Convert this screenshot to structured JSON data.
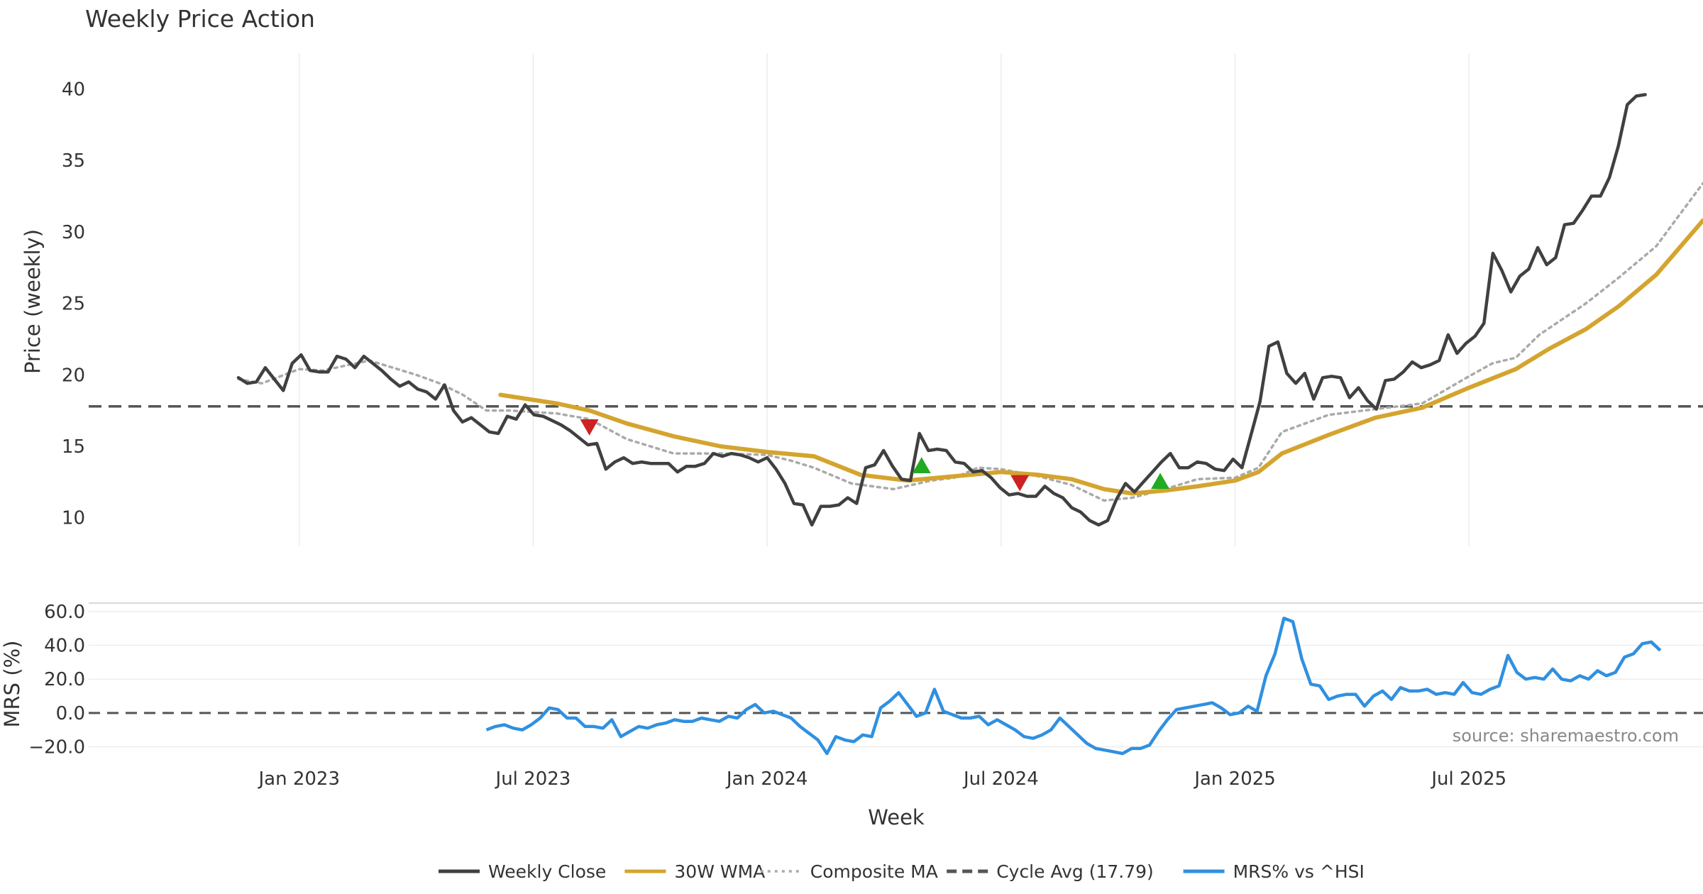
{
  "chart_data": [
    {
      "type": "line",
      "title": "Weekly Price Action",
      "ylabel": "Price (weekly)",
      "xlim": [
        2022.55,
        2026.0
      ],
      "ylim": [
        8,
        42.5
      ],
      "yticks": [
        10,
        15,
        20,
        25,
        30,
        35,
        40
      ],
      "xticks": [
        {
          "value": 2023.0,
          "label": "Jan 2023"
        },
        {
          "value": 2023.5,
          "label": "Jul 2023"
        },
        {
          "value": 2024.0,
          "label": "Jan 2024"
        },
        {
          "value": 2024.5,
          "label": "Jul 2024"
        },
        {
          "value": 2025.0,
          "label": "Jan 2025"
        },
        {
          "value": 2025.5,
          "label": "Jul 2025"
        }
      ],
      "hline": {
        "name": "Cycle Avg (17.79)",
        "value": 17.79,
        "color": "#555555"
      },
      "series": [
        {
          "name": "Weekly Close",
          "color": "#404040",
          "style": "solid",
          "x_start": 2022.87,
          "x_step": 0.01915,
          "values": [
            19.8,
            19.4,
            19.5,
            20.5,
            19.7,
            18.9,
            20.8,
            21.4,
            20.3,
            20.2,
            20.2,
            21.3,
            21.1,
            20.5,
            21.3,
            20.8,
            20.3,
            19.7,
            19.2,
            19.5,
            19.0,
            18.8,
            18.3,
            19.3,
            17.5,
            16.7,
            17.0,
            16.5,
            16.0,
            15.9,
            17.1,
            16.9,
            17.9,
            17.2,
            17.1,
            16.8,
            16.5,
            16.1,
            15.6,
            15.1,
            15.2,
            13.4,
            13.9,
            14.2,
            13.8,
            13.9,
            13.8,
            13.8,
            13.8,
            13.2,
            13.6,
            13.6,
            13.8,
            14.5,
            14.3,
            14.5,
            14.4,
            14.2,
            13.9,
            14.2,
            13.4,
            12.4,
            11.0,
            10.9,
            9.5,
            10.8,
            10.8,
            10.9,
            11.4,
            11.0,
            13.5,
            13.7,
            14.7,
            13.6,
            12.7,
            12.6,
            15.9,
            14.7,
            14.8,
            14.7,
            13.9,
            13.8,
            13.2,
            13.3,
            12.8,
            12.1,
            11.6,
            11.7,
            11.5,
            11.5,
            12.2,
            11.7,
            11.4,
            10.7,
            10.4,
            9.8,
            9.5,
            9.8,
            11.3,
            12.4,
            11.8,
            12.5,
            13.2,
            13.9,
            14.5,
            13.5,
            13.5,
            13.9,
            13.8,
            13.4,
            13.3,
            14.1,
            13.5,
            15.8,
            18.1,
            22.0,
            22.3,
            20.1,
            19.4,
            20.1,
            18.3,
            19.8,
            19.9,
            19.8,
            18.4,
            19.1,
            18.2,
            17.6,
            19.6,
            19.7,
            20.2,
            20.9,
            20.5,
            20.7,
            21.0,
            22.8,
            21.5,
            22.2,
            22.7,
            23.6,
            28.5,
            27.3,
            25.8,
            26.9,
            27.4,
            28.9,
            27.7,
            28.2,
            30.5,
            30.6,
            31.5,
            32.5,
            32.5,
            33.8,
            36.0,
            38.9,
            39.5,
            39.6
          ]
        },
        {
          "name": "30W WMA",
          "color": "#D4A42E",
          "style": "solid",
          "points": [
            [
              2023.43,
              18.6
            ],
            [
              2023.55,
              18.0
            ],
            [
              2023.62,
              17.5
            ],
            [
              2023.7,
              16.6
            ],
            [
              2023.8,
              15.7
            ],
            [
              2023.9,
              15.0
            ],
            [
              2024.0,
              14.6
            ],
            [
              2024.1,
              14.3
            ],
            [
              2024.2,
              13.0
            ],
            [
              2024.3,
              12.6
            ],
            [
              2024.4,
              12.9
            ],
            [
              2024.5,
              13.2
            ],
            [
              2024.58,
              13.0
            ],
            [
              2024.65,
              12.7
            ],
            [
              2024.72,
              12.0
            ],
            [
              2024.78,
              11.7
            ],
            [
              2024.85,
              11.9
            ],
            [
              2024.92,
              12.2
            ],
            [
              2025.0,
              12.6
            ],
            [
              2025.05,
              13.2
            ],
            [
              2025.1,
              14.5
            ],
            [
              2025.2,
              15.8
            ],
            [
              2025.3,
              17.0
            ],
            [
              2025.4,
              17.7
            ],
            [
              2025.5,
              19.1
            ],
            [
              2025.6,
              20.4
            ],
            [
              2025.67,
              21.8
            ],
            [
              2025.75,
              23.2
            ],
            [
              2025.82,
              24.8
            ],
            [
              2025.9,
              27.0
            ],
            [
              2025.95,
              28.9
            ],
            [
              2026.0,
              30.8
            ]
          ]
        },
        {
          "name": "Composite MA",
          "color": "#AAAAAA",
          "style": "dotted",
          "points": [
            [
              2022.87,
              19.7
            ],
            [
              2022.92,
              19.4
            ],
            [
              2023.0,
              20.4
            ],
            [
              2023.05,
              20.3
            ],
            [
              2023.15,
              21.0
            ],
            [
              2023.25,
              20.0
            ],
            [
              2023.3,
              19.4
            ],
            [
              2023.35,
              18.6
            ],
            [
              2023.4,
              17.5
            ],
            [
              2023.45,
              17.5
            ],
            [
              2023.55,
              17.3
            ],
            [
              2023.62,
              16.9
            ],
            [
              2023.7,
              15.5
            ],
            [
              2023.8,
              14.5
            ],
            [
              2023.9,
              14.5
            ],
            [
              2024.0,
              14.4
            ],
            [
              2024.05,
              14.0
            ],
            [
              2024.1,
              13.5
            ],
            [
              2024.18,
              12.4
            ],
            [
              2024.27,
              12.0
            ],
            [
              2024.35,
              12.6
            ],
            [
              2024.4,
              12.8
            ],
            [
              2024.45,
              13.5
            ],
            [
              2024.5,
              13.4
            ],
            [
              2024.58,
              12.9
            ],
            [
              2024.65,
              12.3
            ],
            [
              2024.72,
              11.2
            ],
            [
              2024.78,
              11.4
            ],
            [
              2024.85,
              12.0
            ],
            [
              2024.92,
              12.7
            ],
            [
              2025.0,
              12.8
            ],
            [
              2025.05,
              13.5
            ],
            [
              2025.1,
              16.0
            ],
            [
              2025.2,
              17.2
            ],
            [
              2025.3,
              17.6
            ],
            [
              2025.4,
              18.0
            ],
            [
              2025.5,
              19.9
            ],
            [
              2025.55,
              20.8
            ],
            [
              2025.6,
              21.2
            ],
            [
              2025.65,
              22.8
            ],
            [
              2025.7,
              23.9
            ],
            [
              2025.75,
              25.0
            ],
            [
              2025.82,
              26.8
            ],
            [
              2025.9,
              29.0
            ],
            [
              2025.95,
              31.2
            ],
            [
              2026.0,
              33.4
            ]
          ]
        }
      ],
      "markers": [
        {
          "x": 2023.62,
          "y": 16.4,
          "direction": "down",
          "color": "#CC2222"
        },
        {
          "x": 2024.33,
          "y": 13.6,
          "direction": "up",
          "color": "#22AA22"
        },
        {
          "x": 2024.54,
          "y": 12.5,
          "direction": "down",
          "color": "#CC2222"
        },
        {
          "x": 2024.84,
          "y": 12.5,
          "direction": "up",
          "color": "#22AA22"
        }
      ]
    },
    {
      "type": "line",
      "ylabel": "MRS (%)",
      "xlabel": "Week",
      "xlim": [
        2022.55,
        2026.0
      ],
      "ylim": [
        -24,
        65
      ],
      "yticks": [
        60,
        40,
        20,
        0,
        -20
      ],
      "ytick_labels": [
        "60.0",
        "40.0",
        "20.0",
        "0.0",
        "−20.0"
      ],
      "zero_line": true,
      "series": [
        {
          "name": "MRS% vs ^HSI",
          "color": "#3090E0",
          "style": "solid",
          "x_start": 2023.4,
          "x_step": 0.01915,
          "values": [
            -10,
            -8,
            -7,
            -9,
            -10,
            -7,
            -3,
            3,
            2,
            -3,
            -3,
            -8,
            -8,
            -9,
            -4,
            -14,
            -11,
            -8,
            -9,
            -7,
            -6,
            -4,
            -5,
            -5,
            -3,
            -4,
            -5,
            -2,
            -3,
            2,
            5,
            0,
            1,
            -1,
            -3,
            -8,
            -12,
            -16,
            -24,
            -14,
            -16,
            -17,
            -13,
            -14,
            3,
            7,
            12,
            5,
            -2,
            0,
            14,
            1,
            -1,
            -3,
            -3,
            -2,
            -7,
            -4,
            -7,
            -10,
            -14,
            -15,
            -13,
            -10,
            -3,
            -8,
            -13,
            -18,
            -21,
            -22,
            -23,
            -24,
            -21,
            -21,
            -19,
            -11,
            -4,
            2,
            3,
            4,
            5,
            6,
            3,
            -1,
            0,
            4,
            1,
            22,
            35,
            56,
            54,
            32,
            17,
            16,
            8,
            10,
            11,
            11,
            4,
            10,
            13,
            8,
            15,
            13,
            13,
            14,
            11,
            12,
            11,
            18,
            12,
            11,
            14,
            16,
            34,
            24,
            20,
            21,
            20,
            26,
            20,
            19,
            22,
            20,
            25,
            22,
            24,
            33,
            35,
            41,
            42,
            37
          ]
        }
      ],
      "annotation": "source: sharemaestro.com"
    }
  ],
  "legend": [
    {
      "label": "Weekly Close",
      "color": "#404040",
      "style": "solid"
    },
    {
      "label": "30W WMA",
      "color": "#D4A42E",
      "style": "solid"
    },
    {
      "label": "Composite MA",
      "color": "#AAAAAA",
      "style": "dotted"
    },
    {
      "label": "Cycle Avg (17.79)",
      "color": "#555555",
      "style": "dashed"
    },
    {
      "label": "MRS% vs ^HSI",
      "color": "#3090E0",
      "style": "solid"
    }
  ]
}
